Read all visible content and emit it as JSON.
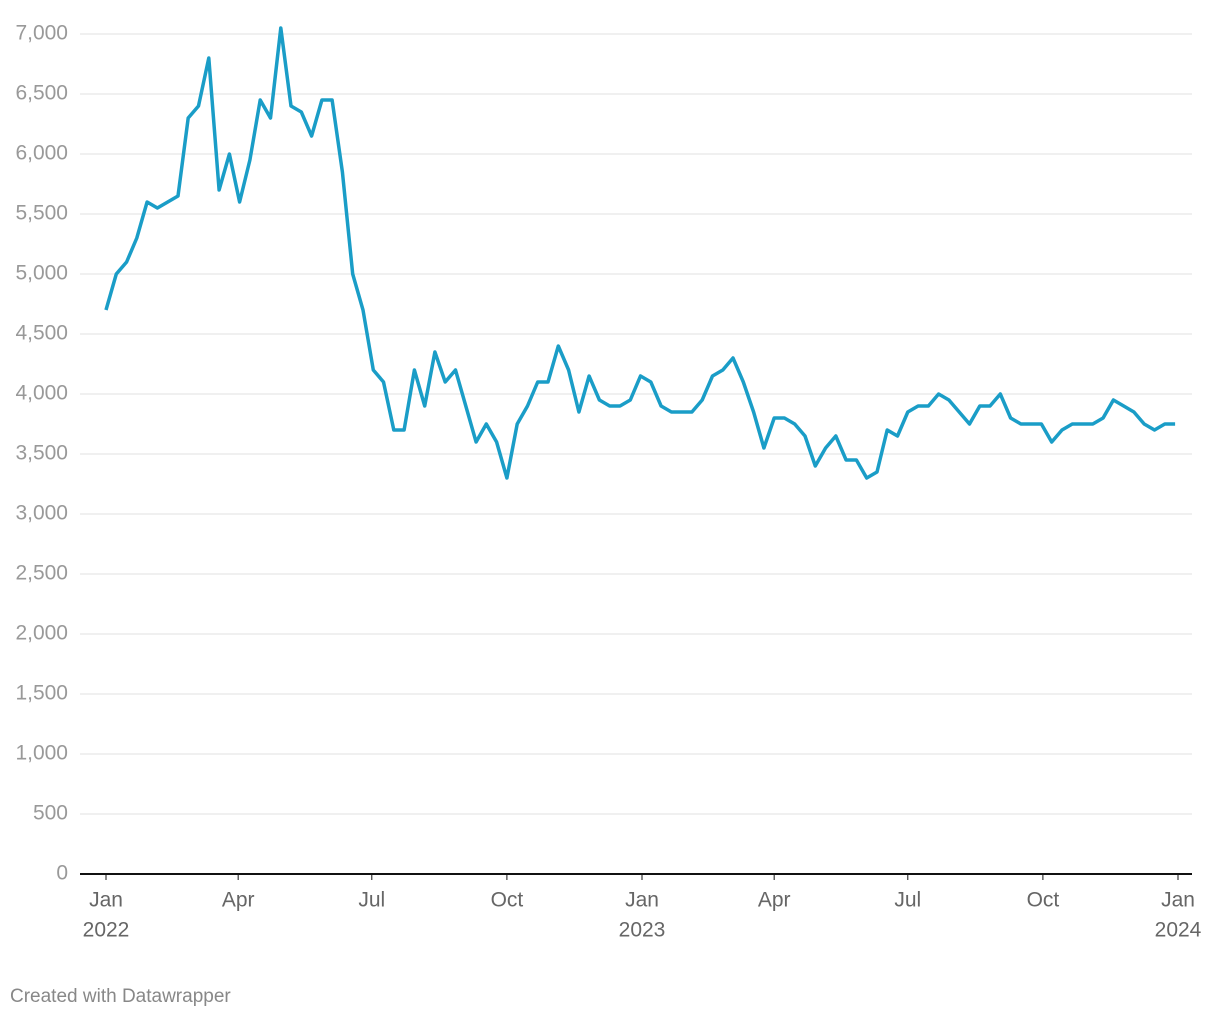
{
  "chart_data": {
    "type": "line",
    "x": [
      "2022-01-01",
      "2022-01-08",
      "2022-01-15",
      "2022-01-22",
      "2022-01-29",
      "2022-02-05",
      "2022-02-12",
      "2022-02-19",
      "2022-02-26",
      "2022-03-05",
      "2022-03-12",
      "2022-03-19",
      "2022-03-26",
      "2022-04-02",
      "2022-04-09",
      "2022-04-16",
      "2022-04-23",
      "2022-04-30",
      "2022-05-07",
      "2022-05-14",
      "2022-05-21",
      "2022-05-28",
      "2022-06-04",
      "2022-06-11",
      "2022-06-18",
      "2022-06-25",
      "2022-07-02",
      "2022-07-09",
      "2022-07-16",
      "2022-07-23",
      "2022-07-30",
      "2022-08-06",
      "2022-08-13",
      "2022-08-20",
      "2022-08-27",
      "2022-09-03",
      "2022-09-10",
      "2022-09-17",
      "2022-09-24",
      "2022-10-01",
      "2022-10-08",
      "2022-10-15",
      "2022-10-22",
      "2022-10-29",
      "2022-11-05",
      "2022-11-12",
      "2022-11-19",
      "2022-11-26",
      "2022-12-03",
      "2022-12-10",
      "2022-12-17",
      "2022-12-24",
      "2022-12-31",
      "2023-01-07",
      "2023-01-14",
      "2023-01-21",
      "2023-01-28",
      "2023-02-04",
      "2023-02-11",
      "2023-02-18",
      "2023-02-25",
      "2023-03-04",
      "2023-03-11",
      "2023-03-18",
      "2023-03-25",
      "2023-04-01",
      "2023-04-08",
      "2023-04-15",
      "2023-04-22",
      "2023-04-29",
      "2023-05-06",
      "2023-05-13",
      "2023-05-20",
      "2023-05-27",
      "2023-06-03",
      "2023-06-10",
      "2023-06-17",
      "2023-06-24",
      "2023-07-01",
      "2023-07-08",
      "2023-07-15",
      "2023-07-22",
      "2023-07-29",
      "2023-08-05",
      "2023-08-12",
      "2023-08-19",
      "2023-08-26",
      "2023-09-02",
      "2023-09-09",
      "2023-09-16",
      "2023-09-23",
      "2023-09-30",
      "2023-10-07",
      "2023-10-14",
      "2023-10-21",
      "2023-10-28",
      "2023-11-04",
      "2023-11-11",
      "2023-11-18",
      "2023-11-25",
      "2023-12-02",
      "2023-12-09",
      "2023-12-16",
      "2023-12-23",
      "2023-12-30"
    ],
    "series": [
      {
        "color": "#1a9dc7",
        "values": [
          4700,
          5000,
          5100,
          5300,
          5600,
          5550,
          5600,
          5650,
          6300,
          6400,
          6800,
          5700,
          6000,
          5600,
          5950,
          6450,
          6300,
          7050,
          6400,
          6350,
          6150,
          6450,
          6450,
          5850,
          5000,
          4700,
          4200,
          4100,
          3700,
          3700,
          4200,
          3900,
          4350,
          4100,
          4200,
          3900,
          3600,
          3750,
          3600,
          3300,
          3750,
          3900,
          4100,
          4100,
          4400,
          4200,
          3850,
          4150,
          3950,
          3900,
          3900,
          3950,
          4150,
          4100,
          3900,
          3850,
          3850,
          3850,
          3950,
          4150,
          4200,
          4300,
          4100,
          3850,
          3550,
          3800,
          3800,
          3750,
          3650,
          3400,
          3550,
          3650,
          3450,
          3450,
          3300,
          3350,
          3700,
          3650,
          3850,
          3900,
          3900,
          4000,
          3950,
          3850,
          3750,
          3900,
          3900,
          4000,
          3800,
          3750,
          3750,
          3750,
          3600,
          3700,
          3750,
          3750,
          3750,
          3800,
          3950,
          3900,
          3850,
          3750,
          3700,
          3750,
          3750
        ]
      }
    ],
    "xlim": [
      "2022-01-01",
      "2024-01-01"
    ],
    "xticks": [
      {
        "value": "2022-01-01",
        "label": [
          "Jan",
          "2022"
        ]
      },
      {
        "value": "2022-04-01",
        "label": [
          "Apr"
        ]
      },
      {
        "value": "2022-07-01",
        "label": [
          "Jul"
        ]
      },
      {
        "value": "2022-10-01",
        "label": [
          "Oct"
        ]
      },
      {
        "value": "2023-01-01",
        "label": [
          "Jan",
          "2023"
        ]
      },
      {
        "value": "2023-04-01",
        "label": [
          "Apr"
        ]
      },
      {
        "value": "2023-07-01",
        "label": [
          "Jul"
        ]
      },
      {
        "value": "2023-10-01",
        "label": [
          "Oct"
        ]
      },
      {
        "value": "2024-01-01",
        "label": [
          "Jan",
          "2024"
        ]
      }
    ],
    "ylim": [
      0,
      7000
    ],
    "yticks": [
      0,
      500,
      {
        "value": 1000,
        "label": "1,000"
      },
      {
        "value": 1500,
        "label": "1,500"
      },
      {
        "value": 2000,
        "label": "2,000"
      },
      {
        "value": 2500,
        "label": "2,500"
      },
      {
        "value": 3000,
        "label": "3,000"
      },
      {
        "value": 3500,
        "label": "3,500"
      },
      {
        "value": 4000,
        "label": "4,000"
      },
      {
        "value": 4500,
        "label": "4,500"
      },
      {
        "value": 5000,
        "label": "5,000"
      },
      {
        "value": 5500,
        "label": "5,500"
      },
      {
        "value": 6000,
        "label": "6,000"
      },
      {
        "value": 6500,
        "label": "6,500"
      },
      {
        "value": 7000,
        "label": "7,000"
      }
    ],
    "grid": true,
    "footer": "Created with Datawrapper"
  }
}
